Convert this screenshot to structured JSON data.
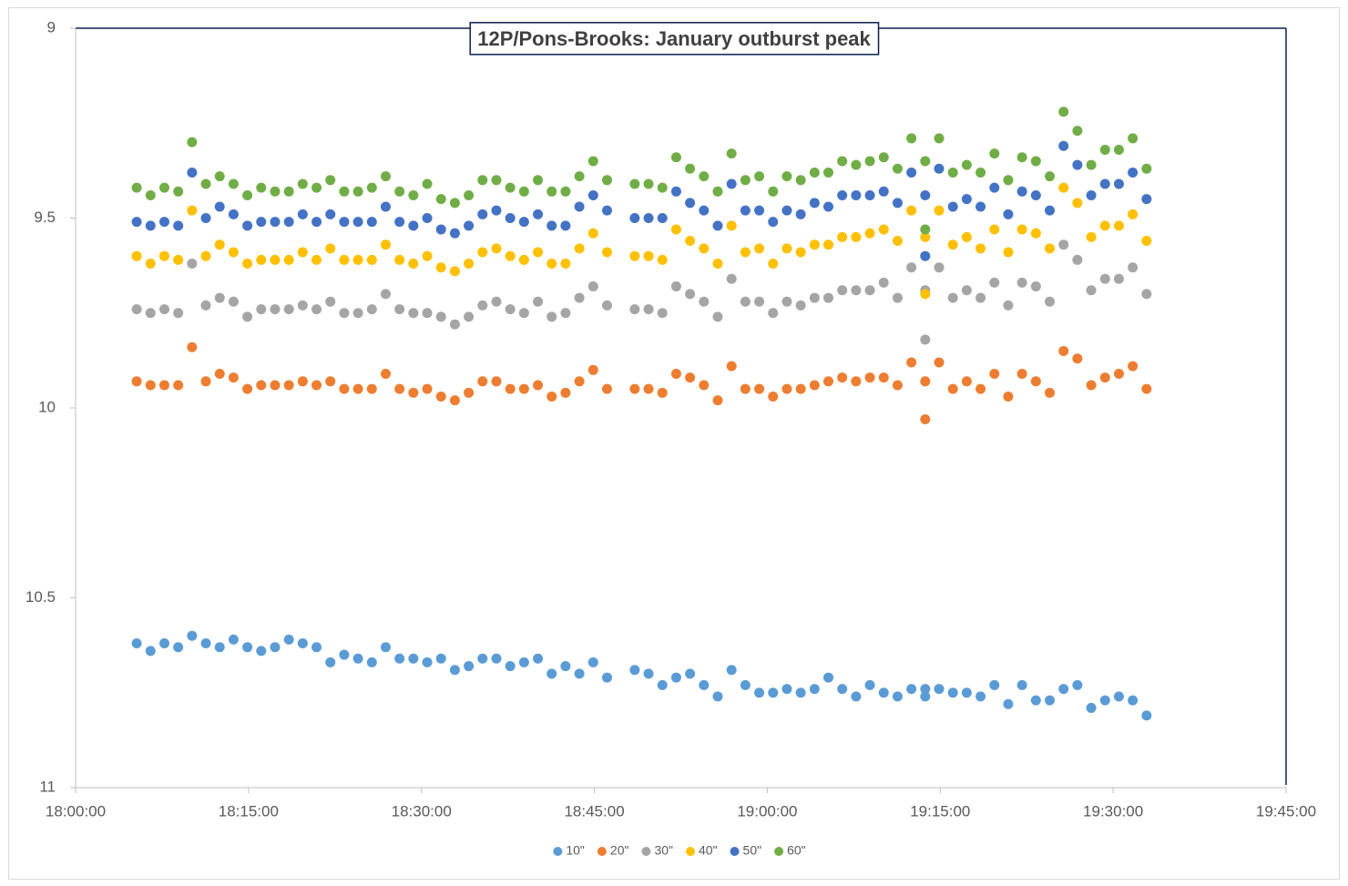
{
  "chart_data": {
    "type": "scatter",
    "title": "12P/Pons-Brooks: January outburst peak",
    "x": [
      "18:05:18",
      "18:06:30",
      "18:07:42",
      "18:08:54",
      "18:10:06",
      "18:11:18",
      "18:12:30",
      "18:13:42",
      "18:14:54",
      "18:16:06",
      "18:17:18",
      "18:18:30",
      "18:19:42",
      "18:20:54",
      "18:22:06",
      "18:23:18",
      "18:24:30",
      "18:25:42",
      "18:26:54",
      "18:28:06",
      "18:29:18",
      "18:30:30",
      "18:31:42",
      "18:32:54",
      "18:34:06",
      "18:35:18",
      "18:36:30",
      "18:37:42",
      "18:38:54",
      "18:40:06",
      "18:41:18",
      "18:42:30",
      "18:43:42",
      "18:44:54",
      "18:46:06",
      "18:48:30",
      "18:49:42",
      "18:50:54",
      "18:52:06",
      "18:53:18",
      "18:54:30",
      "18:55:42",
      "18:56:54",
      "18:58:06",
      "18:59:18",
      "19:00:30",
      "19:01:42",
      "19:02:54",
      "19:04:06",
      "19:05:18",
      "19:06:30",
      "19:07:42",
      "19:08:54",
      "19:10:06",
      "19:11:18",
      "19:12:30",
      "19:13:42",
      "19:13:42",
      "19:14:54",
      "19:16:06",
      "19:17:18",
      "19:18:30",
      "19:19:42",
      "19:20:54",
      "19:22:06",
      "19:23:18",
      "19:24:30",
      "19:25:42",
      "19:26:54",
      "19:28:06",
      "19:29:18",
      "19:30:30",
      "19:31:42",
      "19:32:54"
    ],
    "series": [
      {
        "name": "10\"",
        "color": "#5b9bd5",
        "values": [
          10.62,
          10.64,
          10.62,
          10.63,
          10.6,
          10.62,
          10.63,
          10.61,
          10.63,
          10.64,
          10.63,
          10.61,
          10.62,
          10.63,
          10.67,
          10.65,
          10.66,
          10.67,
          10.63,
          10.66,
          10.66,
          10.67,
          10.66,
          10.69,
          10.68,
          10.66,
          10.66,
          10.68,
          10.67,
          10.66,
          10.7,
          10.68,
          10.7,
          10.67,
          10.71,
          10.69,
          10.7,
          10.73,
          10.71,
          10.7,
          10.73,
          10.76,
          10.69,
          10.73,
          10.75,
          10.75,
          10.74,
          10.75,
          10.74,
          10.71,
          10.74,
          10.76,
          10.73,
          10.75,
          10.76,
          10.74,
          10.74,
          10.76,
          10.74,
          10.75,
          10.75,
          10.76,
          10.73,
          10.78,
          10.73,
          10.77,
          10.77,
          10.74,
          10.73,
          10.79,
          10.77,
          10.76,
          10.77,
          10.81
        ]
      },
      {
        "name": "20\"",
        "color": "#ed7d31",
        "values": [
          9.93,
          9.94,
          9.94,
          9.94,
          9.84,
          9.93,
          9.91,
          9.92,
          9.95,
          9.94,
          9.94,
          9.94,
          9.93,
          9.94,
          9.93,
          9.95,
          9.95,
          9.95,
          9.91,
          9.95,
          9.96,
          9.95,
          9.97,
          9.98,
          9.96,
          9.93,
          9.93,
          9.95,
          9.95,
          9.94,
          9.97,
          9.96,
          9.93,
          9.9,
          9.95,
          9.95,
          9.95,
          9.96,
          9.91,
          9.92,
          9.94,
          9.98,
          9.89,
          9.95,
          9.95,
          9.97,
          9.95,
          9.95,
          9.94,
          9.93,
          9.92,
          9.93,
          9.92,
          9.92,
          9.94,
          9.88,
          9.93,
          10.03,
          9.88,
          9.95,
          9.93,
          9.95,
          9.91,
          9.97,
          9.91,
          9.93,
          9.96,
          9.85,
          9.87,
          9.94,
          9.92,
          9.91,
          9.89,
          9.95
        ]
      },
      {
        "name": "30\"",
        "color": "#a5a5a5",
        "values": [
          9.74,
          9.75,
          9.74,
          9.75,
          9.62,
          9.73,
          9.71,
          9.72,
          9.76,
          9.74,
          9.74,
          9.74,
          9.73,
          9.74,
          9.72,
          9.75,
          9.75,
          9.74,
          9.7,
          9.74,
          9.75,
          9.75,
          9.76,
          9.78,
          9.76,
          9.73,
          9.72,
          9.74,
          9.75,
          9.72,
          9.76,
          9.75,
          9.71,
          9.68,
          9.73,
          9.74,
          9.74,
          9.75,
          9.68,
          9.7,
          9.72,
          9.76,
          9.66,
          9.72,
          9.72,
          9.75,
          9.72,
          9.73,
          9.71,
          9.71,
          9.69,
          9.69,
          9.69,
          9.67,
          9.71,
          9.63,
          9.69,
          9.82,
          9.63,
          9.71,
          9.69,
          9.71,
          9.67,
          9.73,
          9.67,
          9.68,
          9.72,
          9.57,
          9.61,
          9.69,
          9.66,
          9.66,
          9.63,
          9.7
        ]
      },
      {
        "name": "40\"",
        "color": "#ffc000",
        "values": [
          9.6,
          9.62,
          9.6,
          9.61,
          9.48,
          9.6,
          9.57,
          9.59,
          9.62,
          9.61,
          9.61,
          9.61,
          9.59,
          9.61,
          9.58,
          9.61,
          9.61,
          9.61,
          9.57,
          9.61,
          9.62,
          9.6,
          9.63,
          9.64,
          9.62,
          9.59,
          9.58,
          9.6,
          9.61,
          9.59,
          9.62,
          9.62,
          9.58,
          9.54,
          9.59,
          9.6,
          9.6,
          9.61,
          9.53,
          9.56,
          9.58,
          9.62,
          9.52,
          9.59,
          9.58,
          9.62,
          9.58,
          9.59,
          9.57,
          9.57,
          9.55,
          9.55,
          9.54,
          9.53,
          9.56,
          9.48,
          9.55,
          9.7,
          9.48,
          9.57,
          9.55,
          9.58,
          9.53,
          9.59,
          9.53,
          9.54,
          9.58,
          9.42,
          9.46,
          9.55,
          9.52,
          9.52,
          9.49,
          9.56
        ]
      },
      {
        "name": "50\"",
        "color": "#4472c4",
        "values": [
          9.51,
          9.52,
          9.51,
          9.52,
          9.38,
          9.5,
          9.47,
          9.49,
          9.52,
          9.51,
          9.51,
          9.51,
          9.49,
          9.51,
          9.49,
          9.51,
          9.51,
          9.51,
          9.47,
          9.51,
          9.52,
          9.5,
          9.53,
          9.54,
          9.52,
          9.49,
          9.48,
          9.5,
          9.51,
          9.49,
          9.52,
          9.52,
          9.47,
          9.44,
          9.48,
          9.5,
          9.5,
          9.5,
          9.43,
          9.46,
          9.48,
          9.52,
          9.41,
          9.48,
          9.48,
          9.51,
          9.48,
          9.49,
          9.46,
          9.47,
          9.44,
          9.44,
          9.44,
          9.43,
          9.46,
          9.38,
          9.44,
          9.6,
          9.37,
          9.47,
          9.45,
          9.47,
          9.42,
          9.49,
          9.43,
          9.44,
          9.48,
          9.31,
          9.36,
          9.44,
          9.41,
          9.41,
          9.38,
          9.45
        ]
      },
      {
        "name": "60\"",
        "color": "#70ad47",
        "values": [
          9.42,
          9.44,
          9.42,
          9.43,
          9.3,
          9.41,
          9.39,
          9.41,
          9.44,
          9.42,
          9.43,
          9.43,
          9.41,
          9.42,
          9.4,
          9.43,
          9.43,
          9.42,
          9.39,
          9.43,
          9.44,
          9.41,
          9.45,
          9.46,
          9.44,
          9.4,
          9.4,
          9.42,
          9.43,
          9.4,
          9.43,
          9.43,
          9.39,
          9.35,
          9.4,
          9.41,
          9.41,
          9.42,
          9.34,
          9.37,
          9.39,
          9.43,
          9.33,
          9.4,
          9.39,
          9.43,
          9.39,
          9.4,
          9.38,
          9.38,
          9.35,
          9.36,
          9.35,
          9.34,
          9.37,
          9.29,
          9.35,
          9.53,
          9.29,
          9.38,
          9.36,
          9.38,
          9.33,
          9.4,
          9.34,
          9.35,
          9.39,
          9.22,
          9.27,
          9.36,
          9.32,
          9.32,
          9.29,
          9.37
        ]
      }
    ],
    "xlim": [
      "18:00:00",
      "19:45:00"
    ],
    "xticks": [
      "18:00:00",
      "18:15:00",
      "18:30:00",
      "18:45:00",
      "19:00:00",
      "19:15:00",
      "19:30:00",
      "19:45:00"
    ],
    "ylim": [
      9,
      11
    ],
    "yticks": [
      9,
      9.5,
      10,
      10.5,
      11
    ],
    "y_reversed": true,
    "legend": "bottom"
  }
}
